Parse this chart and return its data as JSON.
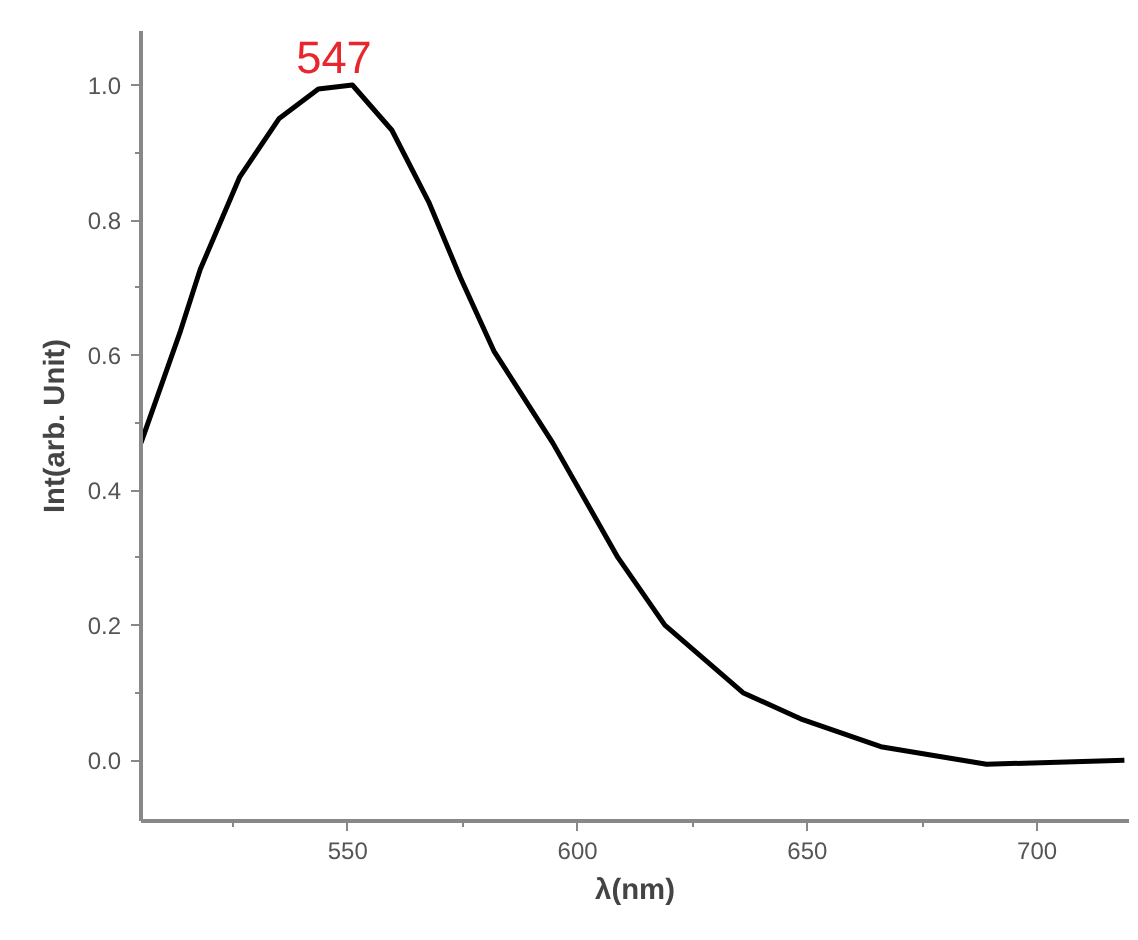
{
  "chart_data": {
    "type": "line",
    "xlabel": "λ(nm)",
    "ylabel": "Int(arb. Unit)",
    "annotations": [
      {
        "text": "547",
        "x": 547,
        "y": 1.0
      }
    ],
    "xlim": [
      505,
      720
    ],
    "ylim": [
      -0.09,
      1.08
    ],
    "xticks": [
      550,
      600,
      650,
      700
    ],
    "yticks": [
      {
        "value": 0,
        "label": "0.0"
      },
      {
        "value": 0.2,
        "label": "0.2"
      },
      {
        "value": 0.4,
        "label": "0.4"
      },
      {
        "value": 0.6,
        "label": "0.6"
      },
      {
        "value": 0.8,
        "label": "0.8"
      },
      {
        "value": 1.0,
        "label": "1.0"
      }
    ],
    "grid": false,
    "marker": "none",
    "line_style": "solid",
    "series": [
      {
        "color": "#000000",
        "x": [
          505,
          513.6,
          517.9,
          526.5,
          535,
          543.6,
          551,
          559.6,
          567.6,
          574.5,
          581.8,
          594.6,
          608.8,
          619,
          636,
          649,
          666,
          689,
          719
        ],
        "values": [
          0.47,
          0.636,
          0.727,
          0.864,
          0.95,
          0.994,
          1.0,
          0.933,
          0.827,
          0.715,
          0.606,
          0.47,
          0.3,
          0.2,
          0.1,
          0.06,
          0.02,
          -0.006,
          0.0
        ]
      }
    ]
  }
}
